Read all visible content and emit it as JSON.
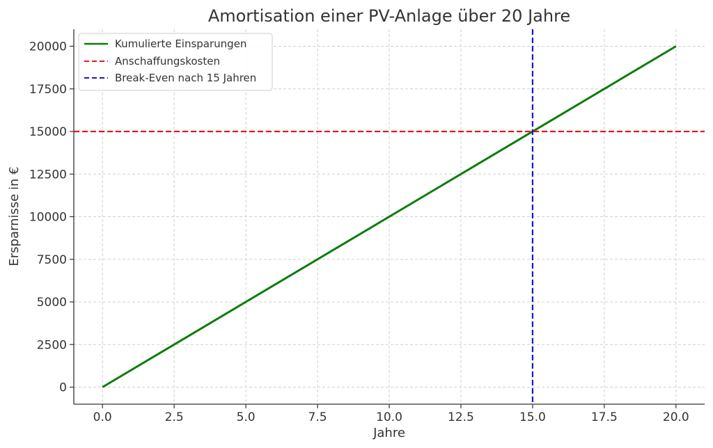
{
  "chart_data": {
    "type": "line",
    "title": "Amortisation einer PV-Anlage über 20 Jahre",
    "xlabel": "Jahre",
    "ylabel": "Ersparnisse in €",
    "xlim": [
      -1,
      21
    ],
    "ylim": [
      -1000,
      21000
    ],
    "xticks": [
      0,
      2.5,
      5,
      7.5,
      10,
      12.5,
      15,
      17.5,
      20
    ],
    "xtick_labels": [
      "0.0",
      "2.5",
      "5.0",
      "7.5",
      "10.0",
      "12.5",
      "15.0",
      "17.5",
      "20.0"
    ],
    "yticks": [
      0,
      2500,
      5000,
      7500,
      10000,
      12500,
      15000,
      17500,
      20000
    ],
    "ytick_labels": [
      "0",
      "2500",
      "5000",
      "7500",
      "10000",
      "12500",
      "15000",
      "17500",
      "20000"
    ],
    "grid": true,
    "legend_position": "top-left",
    "series": [
      {
        "name": "Kumulierte Einsparungen",
        "style": "solid",
        "color": "#0a7d0a",
        "x": [
          0,
          20
        ],
        "y": [
          0,
          20000
        ]
      }
    ],
    "reference_lines": [
      {
        "name": "Anschaffungskosten",
        "orientation": "horizontal",
        "value": 15000,
        "style": "dashed",
        "color": "#e01b1b"
      },
      {
        "name": "Break-Even nach 15 Jahren",
        "orientation": "vertical",
        "value": 15,
        "style": "dashed",
        "color": "#1515d0"
      }
    ]
  }
}
